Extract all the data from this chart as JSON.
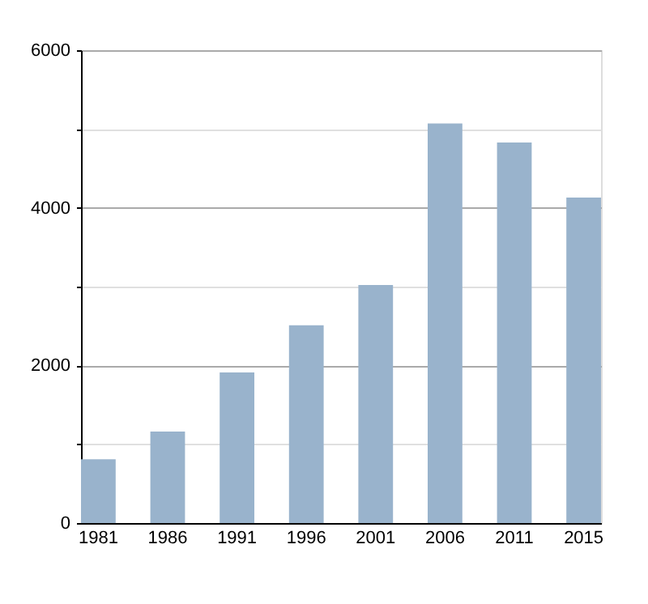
{
  "chart_data": {
    "type": "bar",
    "categories": [
      "1981",
      "1986",
      "1991",
      "1996",
      "2001",
      "2006",
      "2011",
      "2015"
    ],
    "values": [
      810,
      1160,
      1910,
      2510,
      3020,
      5070,
      4830,
      4130
    ],
    "color": "#99b3cc",
    "ylim": [
      0,
      6000
    ],
    "yticks": [
      0,
      {
        "value": 1000,
        "label": null
      },
      2000,
      {
        "value": 3000,
        "label": null
      },
      4000,
      {
        "value": 5000,
        "label": null
      },
      6000
    ],
    "grid": "y"
  }
}
